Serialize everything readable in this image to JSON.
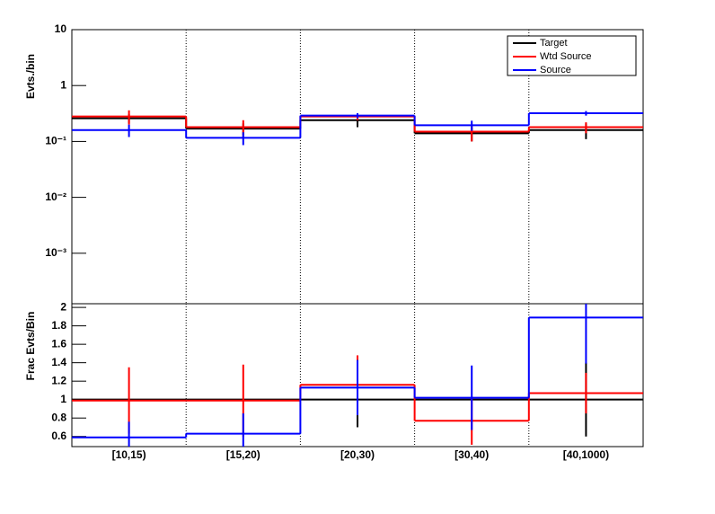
{
  "chart_data": [
    {
      "type": "step",
      "ylabel": "Evts./bin",
      "log": true,
      "grid_x": true,
      "legend": "upper right",
      "categories": [
        "[10,15)",
        "[15,20)",
        "[20,30)",
        "[30,40)",
        "[40,1000)"
      ],
      "ylim": [
        0.000125,
        10
      ],
      "yticks": [
        10,
        1,
        {
          "value": 0.1,
          "label": "10⁻¹"
        },
        {
          "value": 0.01,
          "label": "10⁻²"
        },
        {
          "value": 0.001,
          "label": "10⁻³"
        }
      ],
      "series": [
        {
          "name": "Target",
          "color": "#000000",
          "values": [
            0.26,
            0.17,
            0.24,
            0.14,
            0.16
          ],
          "errors": [
            0.05,
            0.04,
            0.06,
            0.04,
            0.05
          ]
        },
        {
          "name": "Wtd Source",
          "color": "#ff0000",
          "values": [
            0.28,
            0.18,
            0.28,
            0.15,
            0.18
          ],
          "errors": [
            0.08,
            0.06,
            0.04,
            0.05,
            0.04
          ]
        },
        {
          "name": "Source",
          "color": "#0000ff",
          "values": [
            0.16,
            0.116,
            0.29,
            0.195,
            0.32
          ],
          "errors": [
            0.04,
            0.03,
            0.03,
            0.04,
            0.03
          ]
        }
      ]
    },
    {
      "type": "step",
      "ylabel": "Frac Evts/Bin",
      "log": false,
      "grid_x": true,
      "categories": [
        "[10,15)",
        "[15,20)",
        "[20,30)",
        "[30,40)",
        "[40,1000)"
      ],
      "ylim": [
        0.49,
        2.04
      ],
      "yticks": [
        0.6,
        0.8,
        1,
        1.2,
        1.4,
        1.6,
        1.8,
        2
      ],
      "series": [
        {
          "color": "#000000",
          "values": [
            1,
            1,
            1,
            1,
            1
          ],
          "errors": [
            0,
            0,
            0.3,
            0,
            0.4
          ]
        },
        {
          "color": "#ff0000",
          "values": [
            0.99,
            0.99,
            1.16,
            0.77,
            1.07
          ],
          "errors": [
            0.36,
            0.39,
            0.32,
            0.26,
            0.22
          ]
        },
        {
          "color": "#0000ff",
          "values": [
            0.59,
            0.63,
            1.13,
            1.02,
            1.89
          ],
          "errors": [
            0.17,
            0.22,
            0.3,
            0.35,
            0.5
          ]
        }
      ]
    }
  ]
}
